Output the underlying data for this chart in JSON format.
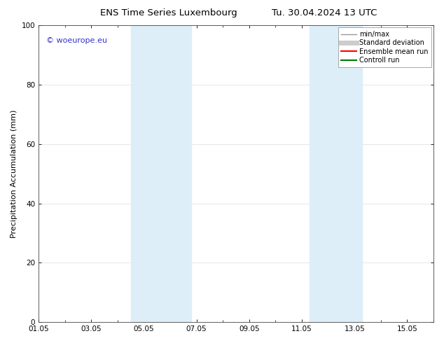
{
  "title_left": "ENS Time Series Luxembourg",
  "title_right": "Tu. 30.04.2024 13 UTC",
  "ylabel": "Precipitation Accumulation (mm)",
  "ylim": [
    0,
    100
  ],
  "yticks": [
    0,
    20,
    40,
    60,
    80,
    100
  ],
  "xtick_labels": [
    "01.05",
    "03.05",
    "05.05",
    "07.05",
    "09.05",
    "11.05",
    "13.05",
    "15.05"
  ],
  "xtick_day_offsets": [
    0,
    2,
    4,
    6,
    8,
    10,
    12,
    14
  ],
  "shaded_bands": [
    {
      "x_start": 3.5,
      "x_end": 5.8,
      "color": "#ddeef8"
    },
    {
      "x_start": 10.3,
      "x_end": 12.3,
      "color": "#ddeef8"
    }
  ],
  "watermark_text": "© woeurope.eu",
  "watermark_color": "#3333cc",
  "legend_entries": [
    {
      "label": "min/max",
      "color": "#999999",
      "lw": 1.0
    },
    {
      "label": "Standard deviation",
      "color": "#cccccc",
      "lw": 5
    },
    {
      "label": "Ensemble mean run",
      "color": "#ff0000",
      "lw": 1.5
    },
    {
      "label": "Controll run",
      "color": "#007700",
      "lw": 1.5
    }
  ],
  "bg_color": "#ffffff",
  "plot_bg_color": "#ffffff",
  "grid_color": "#dddddd",
  "title_fontsize": 9.5,
  "label_fontsize": 8,
  "tick_fontsize": 7.5,
  "watermark_fontsize": 8,
  "legend_fontsize": 7
}
